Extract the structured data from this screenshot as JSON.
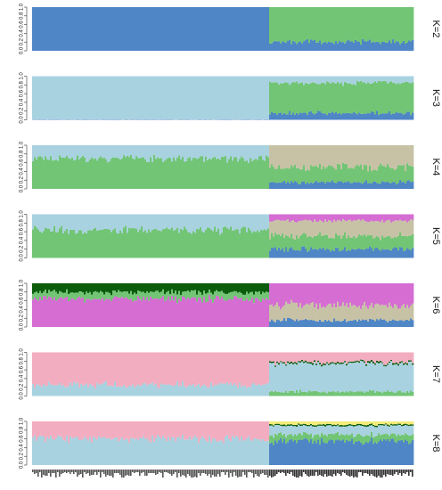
{
  "chart_data": {
    "type": "bar",
    "stacked": true,
    "normalized": true,
    "orientation": "vertical",
    "ylim": [
      0,
      1
    ],
    "ytick_labels": [
      "0.0",
      "0.2",
      "0.4",
      "0.6",
      "0.8",
      "1.0"
    ],
    "yticks": [
      0.0,
      0.2,
      0.4,
      0.6,
      0.8,
      1.0
    ],
    "grid": false,
    "colors": {
      "blue": "#4f86c6",
      "light_blue": "#a9d2e0",
      "green": "#72c575",
      "tan": "#c7c2a6",
      "magenta": "#d56dd3",
      "dark_green": "#0b5c0b",
      "pink": "#f2adc0",
      "yellow": "#f4ec7a",
      "red": "#b01c1c"
    },
    "population_split_fraction": 0.62,
    "panels": [
      {
        "label": "K=2",
        "group_a": [
          {
            "color": "blue",
            "proportion": 1.0
          }
        ],
        "group_b": [
          {
            "color": "blue",
            "proportion": 0.2
          },
          {
            "color": "green",
            "proportion": 0.8
          }
        ]
      },
      {
        "label": "K=3",
        "group_a": [
          {
            "color": "blue",
            "proportion": 0.01
          },
          {
            "color": "light_blue",
            "proportion": 0.99
          }
        ],
        "group_b": [
          {
            "color": "blue",
            "proportion": 0.15
          },
          {
            "color": "green",
            "proportion": 0.7
          },
          {
            "color": "light_blue",
            "proportion": 0.15
          }
        ]
      },
      {
        "label": "K=4",
        "group_a": [
          {
            "color": "green",
            "proportion": 0.7
          },
          {
            "color": "light_blue",
            "proportion": 0.3
          }
        ],
        "group_b": [
          {
            "color": "blue",
            "proportion": 0.15
          },
          {
            "color": "green",
            "proportion": 0.35
          },
          {
            "color": "tan",
            "proportion": 0.5
          }
        ]
      },
      {
        "label": "K=5",
        "group_a": [
          {
            "color": "green",
            "proportion": 0.65
          },
          {
            "color": "light_blue",
            "proportion": 0.35
          }
        ],
        "group_b": [
          {
            "color": "blue",
            "proportion": 0.2
          },
          {
            "color": "green",
            "proportion": 0.3
          },
          {
            "color": "tan",
            "proportion": 0.35
          },
          {
            "color": "magenta",
            "proportion": 0.15
          }
        ]
      },
      {
        "label": "K=6",
        "group_a": [
          {
            "color": "magenta",
            "proportion": 0.65
          },
          {
            "color": "green",
            "proportion": 0.15
          },
          {
            "color": "dark_green",
            "proportion": 0.2
          }
        ],
        "group_b": [
          {
            "color": "blue",
            "proportion": 0.15
          },
          {
            "color": "tan",
            "proportion": 0.35
          },
          {
            "color": "magenta",
            "proportion": 0.5
          }
        ]
      },
      {
        "label": "K=7",
        "group_a": [
          {
            "color": "light_blue",
            "proportion": 0.25
          },
          {
            "color": "pink",
            "proportion": 0.75
          }
        ],
        "group_b": [
          {
            "color": "green",
            "proportion": 0.1
          },
          {
            "color": "light_blue",
            "proportion": 0.65
          },
          {
            "color": "dark_green",
            "proportion": 0.03
          },
          {
            "color": "pink",
            "proportion": 0.22
          }
        ]
      },
      {
        "label": "K=8",
        "group_a": [
          {
            "color": "light_blue",
            "proportion": 0.6
          },
          {
            "color": "pink",
            "proportion": 0.4
          }
        ],
        "group_b": [
          {
            "color": "blue",
            "proportion": 0.55
          },
          {
            "color": "green",
            "proportion": 0.15
          },
          {
            "color": "light_blue",
            "proportion": 0.2
          },
          {
            "color": "dark_green",
            "proportion": 0.03
          },
          {
            "color": "yellow",
            "proportion": 0.07
          }
        ]
      }
    ]
  }
}
